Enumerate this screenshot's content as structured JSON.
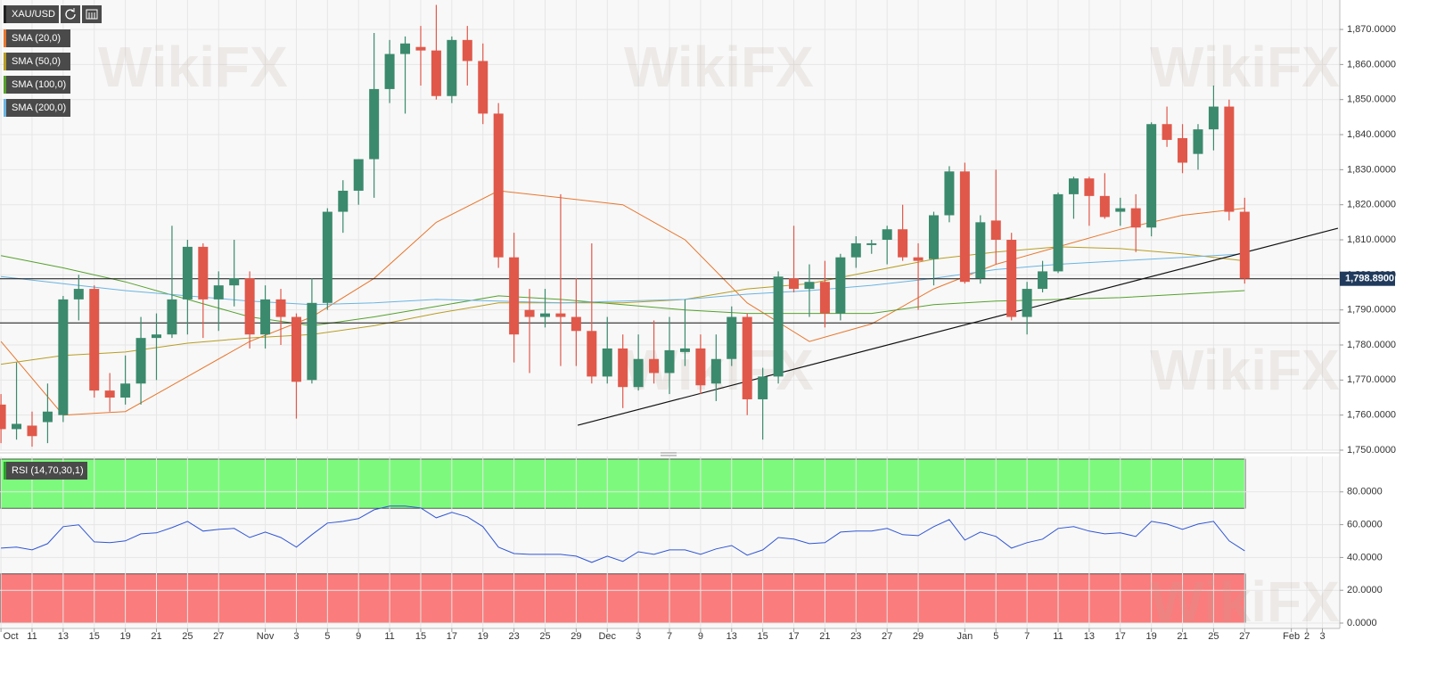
{
  "chart_data": [
    {
      "type": "candlestick",
      "title": "XAU/USD",
      "categories": [
        "Oct",
        null,
        "11",
        null,
        "13",
        null,
        "15",
        null,
        "19",
        null,
        "21",
        null,
        "25",
        null,
        "27",
        null,
        null,
        "Nov",
        null,
        "3",
        null,
        "5",
        null,
        "9",
        null,
        "11",
        null,
        "15",
        null,
        "17",
        null,
        "19",
        null,
        "23",
        null,
        "25",
        null,
        "29",
        null,
        "Dec",
        null,
        "3",
        null,
        "7",
        null,
        "9",
        null,
        "13",
        null,
        "15",
        null,
        "17",
        null,
        "21",
        null,
        "23",
        null,
        "27",
        null,
        "29",
        null,
        null,
        "Jan",
        null,
        "5",
        null,
        "7",
        null,
        "11",
        null,
        "13",
        null,
        "17",
        null,
        "19",
        null,
        "21",
        null,
        "25",
        null,
        "27",
        null,
        null,
        "Feb",
        "2",
        "3"
      ],
      "open": [
        1763,
        1756,
        1757,
        1758,
        1760,
        1793,
        1796,
        1767,
        1765,
        1769,
        1782,
        1783,
        1793,
        1808,
        1793,
        1797,
        1799,
        1783,
        1793,
        1788,
        1770,
        1792,
        1818,
        1824,
        1833,
        1853,
        1863,
        1865,
        1864,
        1851,
        1867,
        1861,
        1846,
        1805,
        1790,
        1788,
        1789,
        1788,
        1784,
        1771,
        1779,
        1768,
        1776,
        1772,
        1778,
        1779,
        1769,
        1776,
        1788,
        1764.5,
        1771,
        1799,
        1796,
        1798,
        1789,
        1805,
        1808.5,
        1810,
        1813,
        1805,
        1804.5,
        1817,
        1829.5,
        1799,
        1815.5,
        1810,
        1788,
        1796,
        1801,
        1823,
        1827.5,
        1822.5,
        1818,
        1819,
        1813.5,
        1843,
        1839,
        1834.5,
        1841.5,
        1848,
        1818,
        null,
        null,
        null,
        null,
        null
      ],
      "high": [
        1766,
        1775,
        1761,
        1769,
        1794,
        1800,
        1797,
        1772,
        1777,
        1788,
        1789,
        1814,
        1810,
        1809,
        1801,
        1810,
        1801,
        1797,
        1796,
        1789,
        1799,
        1819,
        1827,
        1833,
        1869,
        1867,
        1868,
        1871,
        1877,
        1868,
        1871,
        1866,
        1849,
        1812,
        1796,
        1796,
        1823,
        1799,
        1809,
        1788,
        1783,
        1783,
        1787,
        1788,
        1793,
        1783,
        1783,
        1791,
        1789,
        1773.5,
        1801,
        1814,
        1803,
        1804,
        1806,
        1811,
        1810,
        1814,
        1820,
        1809,
        1818,
        1831,
        1832,
        1817,
        1830,
        1812,
        1798,
        1804,
        1823.5,
        1828,
        1828,
        1829,
        1822,
        1823,
        1843.5,
        1848,
        1843,
        1843,
        1854,
        1850,
        1822,
        null,
        null,
        null,
        null,
        null
      ],
      "low": [
        1752,
        1753,
        1751,
        1752,
        1758,
        1787,
        1765,
        1761,
        1763,
        1763,
        1770,
        1782,
        1783,
        1782,
        1784,
        1791,
        1779,
        1779,
        1780,
        1759,
        1769,
        1790,
        1812,
        1820,
        1822,
        1849,
        1846,
        1854,
        1850,
        1849,
        1854,
        1843,
        1802,
        1775,
        1772,
        1785,
        1774,
        1774,
        1769,
        1769,
        1762,
        1767,
        1769,
        1766,
        1774,
        1766,
        1764,
        1774,
        1760,
        1753,
        1769,
        1795,
        1788,
        1785,
        1787,
        1802,
        1806,
        1803,
        1804,
        1790,
        1797,
        1815,
        1797.5,
        1797.5,
        1803,
        1787,
        1783,
        1795,
        1800.5,
        1816,
        1814,
        1816,
        1814,
        1806.5,
        1811,
        1836.5,
        1829,
        1830,
        1835.5,
        1815.5,
        1797.5,
        null,
        null,
        null,
        null,
        null
      ],
      "close": [
        1756,
        1757.5,
        1754,
        1761,
        1793,
        1796,
        1767,
        1765,
        1769,
        1782,
        1783,
        1793,
        1808,
        1793,
        1797,
        1799,
        1783,
        1793,
        1788,
        1769.5,
        1792,
        1818,
        1824,
        1833,
        1853,
        1863,
        1866,
        1864,
        1851,
        1867,
        1861,
        1846,
        1805,
        1783,
        1788,
        1789,
        1788,
        1784,
        1771,
        1779,
        1768,
        1776,
        1772,
        1778.5,
        1779,
        1768.5,
        1776,
        1788,
        1764.5,
        1771,
        1799.5,
        1796,
        1798,
        1789,
        1805,
        1809,
        1809,
        1813,
        1805,
        1804,
        1817,
        1829.5,
        1798,
        1815,
        1810,
        1788,
        1796,
        1801,
        1823,
        1827.5,
        1822.5,
        1816.5,
        1819,
        1813.5,
        1843,
        1838.5,
        1832,
        1841.5,
        1848,
        1818,
        1798.89,
        null,
        null,
        null,
        null,
        null
      ],
      "up_color": "#3b8a6d",
      "down_color": "#e0584a",
      "ylim": [
        1750,
        1878.4
      ],
      "yticks": [
        {
          "value": 1750,
          "label": "1,750.0000"
        },
        {
          "value": 1760,
          "label": "1,760.0000"
        },
        {
          "value": 1770,
          "label": "1,770.0000"
        },
        {
          "value": 1780,
          "label": "1,780.0000"
        },
        {
          "value": 1790,
          "label": "1,790.0000"
        },
        {
          "value": 1800,
          "label": "1,800.0000"
        },
        {
          "value": 1810,
          "label": "1,810.0000"
        },
        {
          "value": 1820,
          "label": "1,820.0000"
        },
        {
          "value": 1830,
          "label": "1,830.0000"
        },
        {
          "value": 1840,
          "label": "1,840.0000"
        },
        {
          "value": 1850,
          "label": "1,850.0000"
        },
        {
          "value": 1860,
          "label": "1,860.0000"
        },
        {
          "value": 1870,
          "label": "1,870.0000"
        }
      ],
      "grid": true,
      "overlays": [
        {
          "name": "SMA (20,0)",
          "color": "#e8772e",
          "x": [
            0,
            4,
            8,
            12,
            16,
            20,
            24,
            28,
            32,
            36,
            40,
            44,
            48,
            52,
            56,
            60,
            64,
            68,
            72,
            76,
            80
          ],
          "values": [
            1781,
            1760,
            1761,
            1771,
            1781,
            1788,
            1799,
            1815,
            1824,
            1822,
            1820,
            1810,
            1792,
            1781,
            1786,
            1796,
            1803,
            1808,
            1813,
            1817,
            1819
          ]
        },
        {
          "name": "SMA (50,0)",
          "color": "#b79d24",
          "x": [
            0,
            4,
            8,
            12,
            16,
            20,
            24,
            28,
            32,
            36,
            40,
            44,
            48,
            52,
            56,
            60,
            64,
            68,
            72,
            76,
            80
          ],
          "values": [
            1774.5,
            1777,
            1778,
            1780.5,
            1782,
            1783,
            1785.5,
            1789,
            1792,
            1792,
            1792,
            1793,
            1796,
            1797.5,
            1801,
            1804.5,
            1806.5,
            1808,
            1807.5,
            1806,
            1804
          ]
        },
        {
          "name": "SMA (100,0)",
          "color": "#56a12e",
          "x": [
            0,
            4,
            8,
            12,
            16,
            20,
            24,
            28,
            32,
            36,
            40,
            44,
            48,
            52,
            56,
            60,
            64,
            68,
            72,
            76,
            80
          ],
          "values": [
            1805.5,
            1802,
            1798,
            1793,
            1788,
            1785.5,
            1788,
            1791,
            1794,
            1793,
            1791.5,
            1790,
            1789,
            1789,
            1789,
            1791.5,
            1792.5,
            1793,
            1793.5,
            1794.5,
            1795.5
          ]
        },
        {
          "name": "SMA (200,0)",
          "color": "#6ab4e2",
          "x": [
            0,
            4,
            8,
            12,
            16,
            20,
            24,
            28,
            32,
            36,
            40,
            44,
            48,
            52,
            56,
            60,
            64,
            68,
            72,
            76,
            80
          ],
          "values": [
            1799.5,
            1797.5,
            1795.5,
            1794,
            1792.5,
            1791.5,
            1792,
            1793,
            1792.5,
            1792,
            1792.5,
            1793,
            1794.5,
            1795.5,
            1797,
            1799,
            1801.5,
            1803,
            1804,
            1805,
            1806
          ]
        }
      ],
      "horizontal_lines": [
        1786.3
      ],
      "trendline": {
        "x": [
          37.1,
          86
        ],
        "values": [
          1757.1,
          1813.3
        ]
      },
      "last_price": {
        "value": 1798.89,
        "label": "1,798.8900"
      },
      "watermark": "WikiFX"
    },
    {
      "type": "line",
      "title": "RSI (14,70,30,1)",
      "color": "#2f55d4",
      "values": [
        45.7,
        46.3,
        44.6,
        48.4,
        58.8,
        59.9,
        49.5,
        49.0,
        50.1,
        54.4,
        55.0,
        58.2,
        62.0,
        56.1,
        57.1,
        57.7,
        52.2,
        55.5,
        52.2,
        46.3,
        53.9,
        61.0,
        62.0,
        63.7,
        69.1,
        71.3,
        71.3,
        70.2,
        64.2,
        67.5,
        64.8,
        58.8,
        46.3,
        42.4,
        41.9,
        41.9,
        41.9,
        40.8,
        37.0,
        40.8,
        37.6,
        43.5,
        41.9,
        44.6,
        44.6,
        41.9,
        45.2,
        47.3,
        41.4,
        44.6,
        52.2,
        51.2,
        48.4,
        49.0,
        55.5,
        56.1,
        56.1,
        57.7,
        53.9,
        53.3,
        58.8,
        63.1,
        50.6,
        55.5,
        52.8,
        45.7,
        49.0,
        51.2,
        57.7,
        58.8,
        56.1,
        54.4,
        55.0,
        52.8,
        62.0,
        60.4,
        57.1,
        60.4,
        62.0,
        50.1,
        44.1,
        null,
        null,
        null,
        null,
        null
      ],
      "ylim": [
        0,
        100
      ],
      "yticks": [
        {
          "value": 0,
          "label": "0.0000"
        },
        {
          "value": 20,
          "label": "20.0000"
        },
        {
          "value": 40,
          "label": "40.0000"
        },
        {
          "value": 60,
          "label": "60.0000"
        },
        {
          "value": 80,
          "label": "80.0000"
        }
      ],
      "overbought_zone": [
        70,
        100
      ],
      "overbought_color": "#7dfa7d",
      "oversold_zone": [
        0,
        30
      ],
      "oversold_color": "#fa7c7c"
    }
  ]
}
